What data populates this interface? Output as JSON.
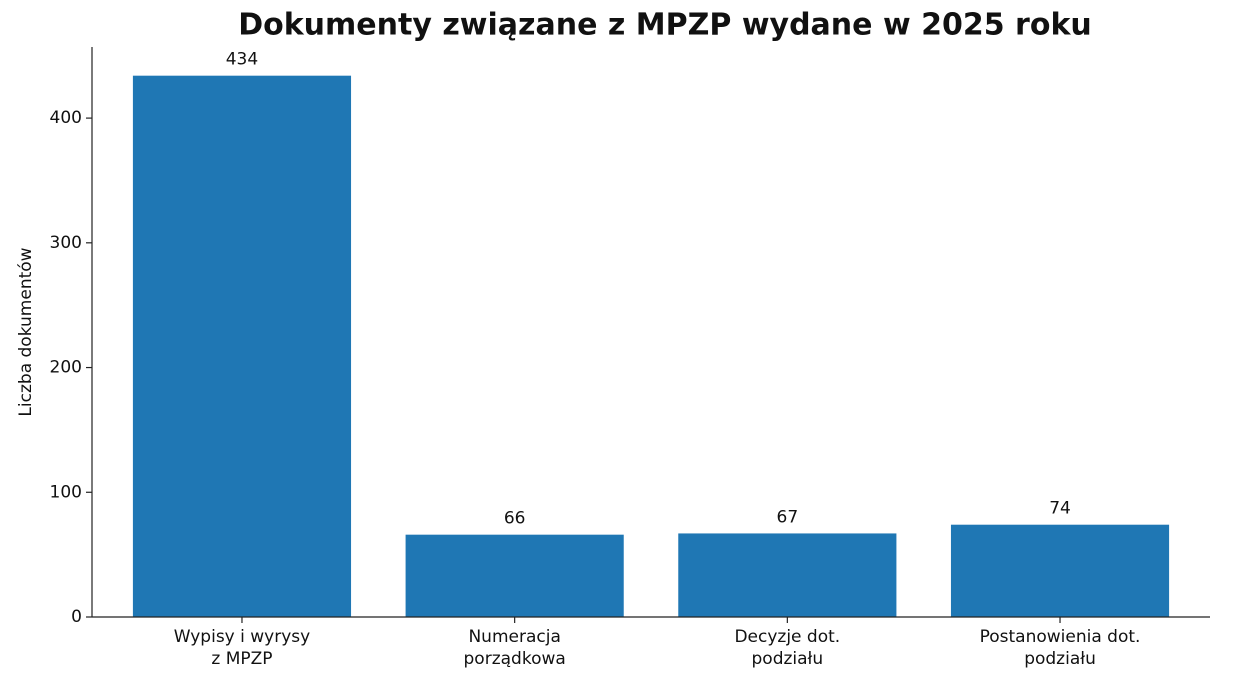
{
  "chart_data": {
    "type": "bar",
    "title": "Dokumenty związane z MPZP wydane w 2025 roku",
    "y_label": "Liczba dokumentów",
    "categories": [
      "Wypisy i wyrysy\nz MPZP",
      "Numeracja\nporządkowa",
      "Decyzje dot.\npodziału",
      "Postanowienia dot.\npodziału"
    ],
    "values": [
      434,
      66,
      67,
      74
    ],
    "color": "#1f77b4",
    "ylim": [
      0,
      457
    ],
    "yticks": [
      0,
      100,
      200,
      300,
      400
    ],
    "grid": false
  }
}
